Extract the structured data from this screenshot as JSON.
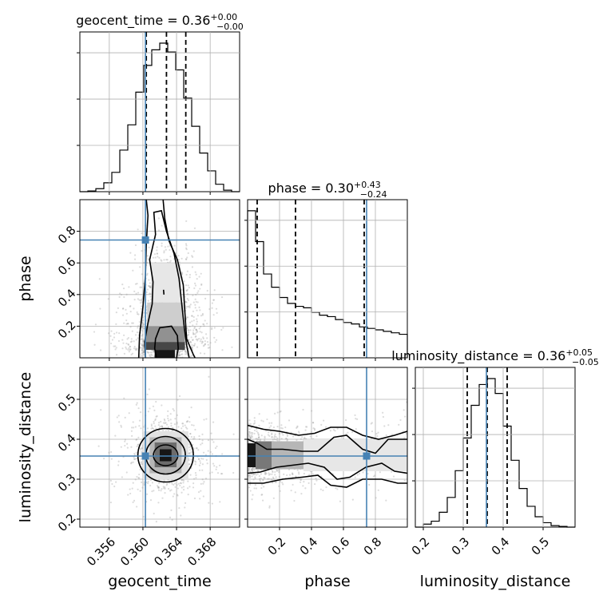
{
  "chart_data": {
    "type": "corner",
    "truth_color": "#4682b4",
    "parameters": [
      {
        "name": "geocent_time",
        "label": "geocent_time",
        "title_prefix": "geocent_time = ",
        "median": "0.36",
        "err_plus": "+0.00",
        "err_minus": "−0.00",
        "lim": [
          0.3525,
          0.3715
        ],
        "ticks": [
          0.356,
          0.36,
          0.364,
          0.368
        ],
        "tick_labels": [
          "0.356",
          "0.360",
          "0.364",
          "0.368"
        ],
        "quantiles": [
          0.3604,
          0.3628,
          0.3651
        ],
        "truth": 0.3603,
        "hist_edges": [
          0.3525,
          0.35345,
          0.3544,
          0.35535,
          0.3563,
          0.35725,
          0.3582,
          0.35915,
          0.3601,
          0.36105,
          0.362,
          0.36295,
          0.3639,
          0.36485,
          0.3658,
          0.36675,
          0.3677,
          0.36865,
          0.3696,
          0.37055,
          0.3715
        ],
        "hist_counts": [
          0,
          0.005,
          0.02,
          0.06,
          0.13,
          0.28,
          0.45,
          0.67,
          0.85,
          0.955,
          1.0,
          0.94,
          0.82,
          0.63,
          0.44,
          0.26,
          0.14,
          0.05,
          0.01,
          0
        ]
      },
      {
        "name": "phase",
        "label": "phase",
        "title_prefix": "phase = ",
        "median": "0.30",
        "err_plus": "+0.43",
        "err_minus": "−0.24",
        "lim": [
          0.0,
          1.0
        ],
        "ticks": [
          0.2,
          0.4,
          0.6,
          0.8
        ],
        "tick_labels": [
          "0.2",
          "0.4",
          "0.6",
          "0.8"
        ],
        "quantiles": [
          0.06,
          0.3,
          0.73
        ],
        "truth": 0.745,
        "hist_edges": [
          0,
          0.05,
          0.1,
          0.15,
          0.2,
          0.25,
          0.3,
          0.35,
          0.4,
          0.45,
          0.5,
          0.55,
          0.6,
          0.65,
          0.7,
          0.75,
          0.8,
          0.85,
          0.9,
          0.95,
          1.0
        ],
        "hist_counts": [
          1.0,
          0.79,
          0.57,
          0.48,
          0.41,
          0.37,
          0.35,
          0.34,
          0.31,
          0.29,
          0.28,
          0.26,
          0.24,
          0.23,
          0.21,
          0.2,
          0.19,
          0.18,
          0.17,
          0.16
        ]
      },
      {
        "name": "luminosity_distance",
        "label": "luminosity_distance",
        "title_prefix": "luminosity_distance = ",
        "median": "0.36",
        "err_plus": "+0.05",
        "err_minus": "−0.05",
        "lim": [
          0.18,
          0.58
        ],
        "ticks": [
          0.2,
          0.3,
          0.4,
          0.5
        ],
        "tick_labels": [
          "0.2",
          "0.3",
          "0.4",
          "0.5"
        ],
        "quantiles": [
          0.31,
          0.36,
          0.41
        ],
        "truth": 0.358,
        "hist_edges": [
          0.18,
          0.2,
          0.22,
          0.24,
          0.26,
          0.28,
          0.3,
          0.32,
          0.34,
          0.36,
          0.38,
          0.4,
          0.42,
          0.44,
          0.46,
          0.48,
          0.5,
          0.52,
          0.54,
          0.56,
          0.58
        ],
        "hist_counts": [
          0,
          0.02,
          0.04,
          0.1,
          0.2,
          0.38,
          0.6,
          0.82,
          0.96,
          1.0,
          0.9,
          0.68,
          0.45,
          0.26,
          0.14,
          0.07,
          0.03,
          0.01,
          0.005,
          0
        ]
      }
    ],
    "pairs": [
      {
        "x": "geocent_time",
        "y": "phase",
        "truth": [
          0.3603,
          0.745
        ],
        "density_blocks": [
          {
            "x": [
              0.3614,
              0.3638
            ],
            "y": [
              0.0,
              0.05
            ],
            "shade": 0.95
          },
          {
            "x": [
              0.3602,
              0.365
            ],
            "y": [
              0.05,
              0.1
            ],
            "shade": 0.75
          },
          {
            "x": [
              0.3602,
              0.365
            ],
            "y": [
              0.1,
              0.2
            ],
            "shade": 0.45
          },
          {
            "x": [
              0.3605,
              0.3648
            ],
            "y": [
              0.2,
              0.35
            ],
            "shade": 0.2
          },
          {
            "x": [
              0.361,
              0.3645
            ],
            "y": [
              0.35,
              0.6
            ],
            "shade": 0.1
          }
        ],
        "contours": [
          [
            [
              0.3616,
              0.0
            ],
            [
              0.3614,
              0.06
            ],
            [
              0.3615,
              0.12
            ],
            [
              0.362,
              0.19
            ],
            [
              0.3634,
              0.2
            ],
            [
              0.3641,
              0.14
            ],
            [
              0.3642,
              0.06
            ],
            [
              0.364,
              0.0
            ]
          ],
          [
            [
              0.3603,
              0.0
            ],
            [
              0.3602,
              0.1
            ],
            [
              0.3606,
              0.22
            ],
            [
              0.3611,
              0.34
            ],
            [
              0.3612,
              0.48
            ],
            [
              0.3608,
              0.62
            ],
            [
              0.3615,
              0.78
            ],
            [
              0.3613,
              0.92
            ],
            [
              0.3622,
              0.93
            ],
            [
              0.3628,
              0.8
            ],
            [
              0.3637,
              0.66
            ],
            [
              0.3643,
              0.5
            ],
            [
              0.3646,
              0.35
            ],
            [
              0.3649,
              0.2
            ],
            [
              0.3652,
              0.08
            ],
            [
              0.3655,
              0.0
            ]
          ],
          [
            [
              0.3595,
              0.0
            ],
            [
              0.3596,
              0.14
            ],
            [
              0.36,
              0.32
            ],
            [
              0.3603,
              0.52
            ],
            [
              0.3604,
              0.72
            ],
            [
              0.3606,
              0.9
            ],
            [
              0.3604,
              1.0
            ]
          ],
          [
            [
              0.3624,
              1.0
            ],
            [
              0.3626,
              0.88
            ],
            [
              0.3631,
              0.74
            ],
            [
              0.3641,
              0.62
            ],
            [
              0.3648,
              0.46
            ],
            [
              0.365,
              0.28
            ],
            [
              0.3652,
              0.12
            ],
            [
              0.366,
              0.02
            ],
            [
              0.3662,
              0.0
            ]
          ],
          [
            [
              0.36245,
              0.43
            ],
            [
              0.3625,
              0.4
            ]
          ]
        ]
      },
      {
        "x": "geocent_time",
        "y": "luminosity_distance",
        "truth": [
          0.3603,
          0.358
        ],
        "center": [
          0.3627,
          0.36
        ],
        "density_blocks": [
          {
            "x": [
              0.362,
              0.3634
            ],
            "y": [
              0.345,
              0.375
            ],
            "shade": 0.95
          },
          {
            "x": [
              0.3614,
              0.364
            ],
            "y": [
              0.33,
              0.392
            ],
            "shade": 0.6
          },
          {
            "x": [
              0.3608,
              0.3646
            ],
            "y": [
              0.315,
              0.405
            ],
            "shade": 0.3
          },
          {
            "x": [
              0.36,
              0.3654
            ],
            "y": [
              0.3,
              0.42
            ],
            "shade": 0.12
          }
        ],
        "ellipses": [
          {
            "rx": 0.00145,
            "ry": 0.026
          },
          {
            "rx": 0.00235,
            "ry": 0.047
          },
          {
            "rx": 0.0033,
            "ry": 0.067
          }
        ]
      },
      {
        "x": "phase",
        "y": "luminosity_distance",
        "truth": [
          0.745,
          0.358
        ],
        "density_blocks": [
          {
            "x": [
              0.0,
              0.05
            ],
            "y": [
              0.33,
              0.39
            ],
            "shade": 0.95
          },
          {
            "x": [
              0.05,
              0.15
            ],
            "y": [
              0.325,
              0.395
            ],
            "shade": 0.55
          },
          {
            "x": [
              0.15,
              0.35
            ],
            "y": [
              0.325,
              0.395
            ],
            "shade": 0.3
          },
          {
            "x": [
              0.35,
              1.0
            ],
            "y": [
              0.32,
              0.4
            ],
            "shade": 0.1
          }
        ],
        "contours": [
          [
            [
              0.0,
              0.4
            ],
            [
              0.06,
              0.39
            ],
            [
              0.12,
              0.375
            ],
            [
              0.22,
              0.375
            ],
            [
              0.34,
              0.37
            ],
            [
              0.44,
              0.37
            ],
            [
              0.54,
              0.405
            ],
            [
              0.62,
              0.41
            ],
            [
              0.72,
              0.375
            ],
            [
              0.8,
              0.365
            ],
            [
              0.88,
              0.4
            ],
            [
              1.0,
              0.4
            ]
          ],
          [
            [
              0.0,
              0.315
            ],
            [
              0.08,
              0.318
            ],
            [
              0.18,
              0.33
            ],
            [
              0.28,
              0.335
            ],
            [
              0.38,
              0.34
            ],
            [
              0.48,
              0.33
            ],
            [
              0.56,
              0.3
            ],
            [
              0.64,
              0.305
            ],
            [
              0.74,
              0.33
            ],
            [
              0.84,
              0.34
            ],
            [
              0.92,
              0.32
            ],
            [
              1.0,
              0.315
            ]
          ],
          [
            [
              0.0,
              0.435
            ],
            [
              0.1,
              0.425
            ],
            [
              0.2,
              0.42
            ],
            [
              0.32,
              0.41
            ],
            [
              0.42,
              0.415
            ],
            [
              0.52,
              0.43
            ],
            [
              0.62,
              0.43
            ],
            [
              0.72,
              0.41
            ],
            [
              0.82,
              0.4
            ],
            [
              0.92,
              0.41
            ],
            [
              1.0,
              0.42
            ]
          ],
          [
            [
              0.0,
              0.29
            ],
            [
              0.1,
              0.29
            ],
            [
              0.22,
              0.3
            ],
            [
              0.34,
              0.305
            ],
            [
              0.44,
              0.31
            ],
            [
              0.52,
              0.285
            ],
            [
              0.62,
              0.28
            ],
            [
              0.72,
              0.3
            ],
            [
              0.84,
              0.3
            ],
            [
              0.94,
              0.29
            ],
            [
              1.0,
              0.29
            ]
          ]
        ]
      }
    ]
  }
}
